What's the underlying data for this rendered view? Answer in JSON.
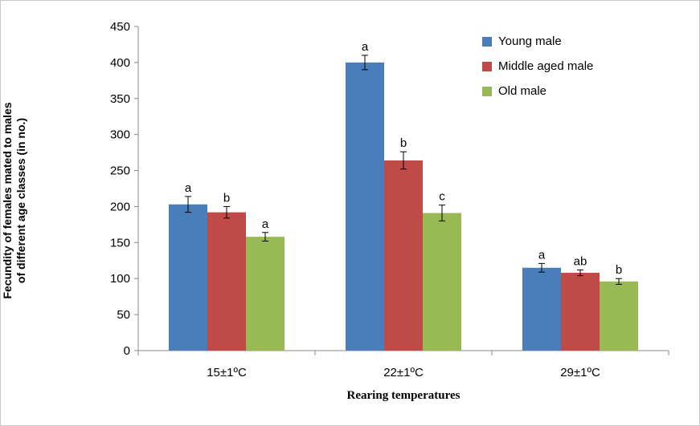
{
  "chart_data": {
    "type": "bar",
    "ylabel_lines": [
      "Fecundity of females mated to males",
      "of different age classes (in no.)"
    ],
    "xlabel": "Rearing temperatures",
    "categories": [
      "15±1ºC",
      "22±1ºC",
      "29±1ºC"
    ],
    "ylim": [
      0,
      450
    ],
    "yticks": [
      0,
      50,
      100,
      150,
      200,
      250,
      300,
      350,
      400,
      450
    ],
    "grid": false,
    "legend_position": "top-right",
    "series": [
      {
        "name": "Young male",
        "color": "#4a7ebb",
        "values": [
          203,
          400,
          115
        ],
        "errors": [
          11,
          10,
          6
        ],
        "labels": [
          "a",
          "a",
          "a"
        ]
      },
      {
        "name": "Middle aged male",
        "color": "#be4b48",
        "values": [
          192,
          264,
          108
        ],
        "errors": [
          8,
          12,
          4
        ],
        "labels": [
          "b",
          "b",
          "ab"
        ]
      },
      {
        "name": "Old male",
        "color": "#98b954",
        "values": [
          158,
          191,
          96
        ],
        "errors": [
          6,
          11,
          4
        ],
        "labels": [
          "a",
          "c",
          "b"
        ]
      }
    ]
  }
}
